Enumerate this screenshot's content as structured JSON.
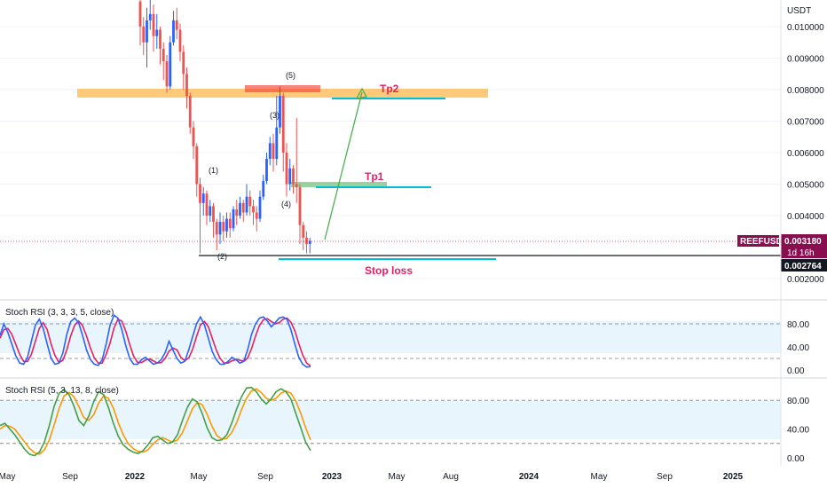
{
  "chart_data": {
    "type": "candlestick",
    "symbol": "REEFUSDT",
    "currency": "USDT",
    "price_ticks": [
      "0.010000",
      "0.009000",
      "0.008000",
      "0.007000",
      "0.006000",
      "0.005000",
      "0.004000",
      "0.002000"
    ],
    "time_ticks": [
      "May",
      "Sep",
      "2022",
      "May",
      "Sep",
      "2023",
      "May",
      "Aug",
      "2024",
      "May",
      "Sep",
      "2025"
    ],
    "price_range": [
      0.0017,
      0.0107
    ],
    "current_price": "0.003180",
    "countdown": "1d 16h",
    "stop_price": "0.002764",
    "wave_labels": [
      "(1)",
      "(2)",
      "(3)",
      "(4)",
      "(5)"
    ],
    "targets": [
      {
        "name": "Tp2",
        "price": 0.00767,
        "color": "#e91e63"
      },
      {
        "name": "Tp1",
        "price": 0.0049,
        "color": "#e91e63"
      },
      {
        "name": "Stop loss",
        "price": 0.00265,
        "color": "#e91e63"
      }
    ],
    "indicators": [
      {
        "title": "Stoch RSI (3, 3, 3, 5, close)",
        "levels": [
          "80.00",
          "40.00",
          "0.00"
        ],
        "k": [
          60,
          80,
          65,
          45,
          25,
          12,
          10,
          22,
          50,
          78,
          88,
          72,
          45,
          20,
          10,
          12,
          30,
          62,
          84,
          90,
          82,
          60,
          35,
          18,
          10,
          8,
          18,
          45,
          78,
          95,
          90,
          70,
          42,
          20,
          10,
          10,
          18,
          22,
          16,
          10,
          12,
          18,
          30,
          50,
          35,
          20,
          12,
          15,
          35,
          58,
          80,
          92,
          78,
          55,
          32,
          18,
          10,
          10,
          15,
          22,
          18,
          12,
          15,
          35,
          62,
          80,
          90,
          92,
          85,
          75,
          82,
          90,
          92,
          88,
          70,
          45,
          22,
          10,
          5,
          6
        ],
        "d": [
          55,
          70,
          72,
          62,
          45,
          27,
          15,
          15,
          27,
          50,
          72,
          82,
          70,
          45,
          25,
          13,
          17,
          35,
          59,
          78,
          85,
          77,
          59,
          38,
          21,
          12,
          12,
          27,
          47,
          73,
          88,
          85,
          67,
          44,
          24,
          13,
          13,
          17,
          19,
          16,
          12,
          13,
          20,
          33,
          38,
          35,
          22,
          16,
          21,
          36,
          58,
          78,
          84,
          75,
          55,
          35,
          20,
          12,
          12,
          16,
          18,
          17,
          15,
          21,
          37,
          59,
          77,
          87,
          89,
          84,
          80,
          82,
          88,
          90,
          83,
          68,
          46,
          26,
          12,
          7
        ]
      },
      {
        "title": "Stoch RSI (5, 3, 13, 8, close)",
        "levels": [
          "80.00",
          "40.00",
          "0.00"
        ],
        "k": [
          45,
          48,
          40,
          32,
          22,
          12,
          5,
          3,
          8,
          22,
          45,
          72,
          90,
          95,
          88,
          72,
          52,
          45,
          58,
          78,
          92,
          88,
          70,
          48,
          30,
          18,
          12,
          8,
          6,
          10,
          18,
          28,
          30,
          25,
          20,
          22,
          32,
          52,
          70,
          82,
          78,
          62,
          42,
          28,
          24,
          25,
          32,
          48,
          68,
          85,
          97,
          98,
          92,
          82,
          75,
          82,
          92,
          96,
          92,
          82,
          62,
          42,
          22,
          10
        ],
        "d": [
          40,
          45,
          44,
          40,
          31,
          22,
          13,
          7,
          5,
          11,
          25,
          46,
          69,
          86,
          91,
          85,
          71,
          56,
          52,
          60,
          76,
          86,
          83,
          69,
          49,
          32,
          20,
          13,
          9,
          8,
          11,
          19,
          25,
          28,
          25,
          22,
          25,
          35,
          51,
          68,
          77,
          74,
          61,
          44,
          31,
          26,
          27,
          35,
          49,
          67,
          83,
          93,
          96,
          91,
          83,
          80,
          83,
          90,
          93,
          90,
          79,
          62,
          42,
          25
        ]
      }
    ]
  }
}
